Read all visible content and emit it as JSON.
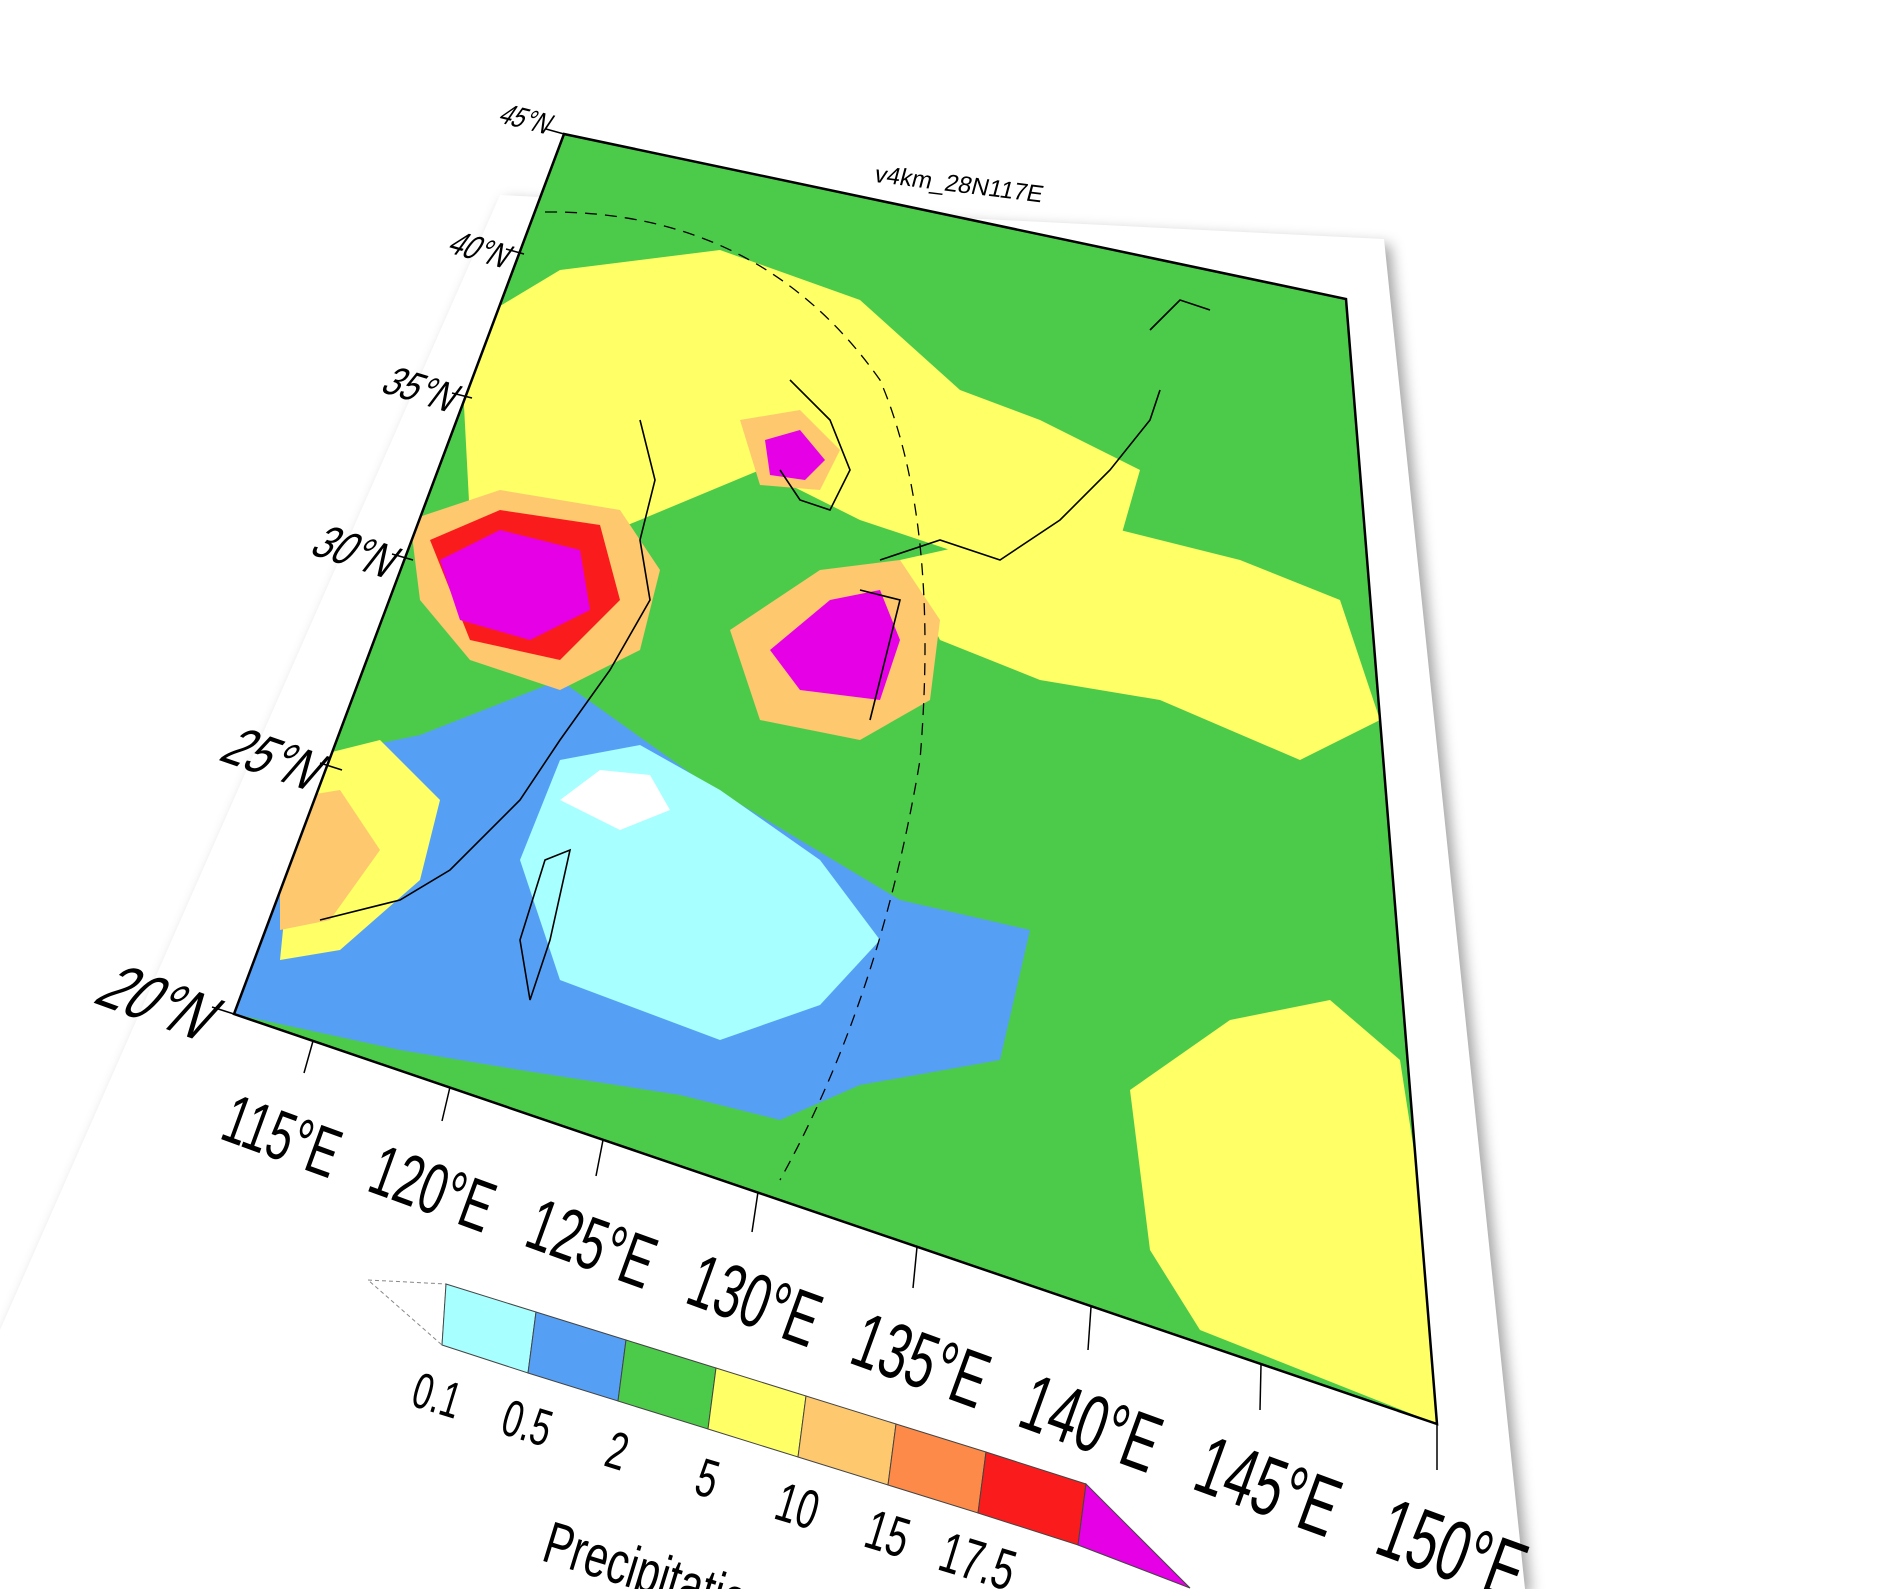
{
  "map": {
    "title": "v4km_28N117E",
    "lat_labels": [
      "45°N",
      "40°N",
      "35°N",
      "30°N",
      "25°N",
      "20°N"
    ],
    "lon_labels": [
      "115°E",
      "120°E",
      "125°E",
      "130°E",
      "135°E",
      "140°E",
      "145°E",
      "150°E"
    ],
    "extent": {
      "lon_min": 110,
      "lon_max": 150,
      "lat_min": 20,
      "lat_max": 45
    }
  },
  "legend": {
    "title": "Precipitation",
    "tick_labels": [
      "0.1",
      "0.5",
      "2",
      "5",
      "10",
      "15",
      "17.5"
    ],
    "colors": [
      "#ffffff",
      "#a8ffff",
      "#55a0f5",
      "#4ccb4a",
      "#ffff66",
      "#fdc86e",
      "#fd8a48",
      "#fa1c1c",
      "#e600e6"
    ]
  }
}
